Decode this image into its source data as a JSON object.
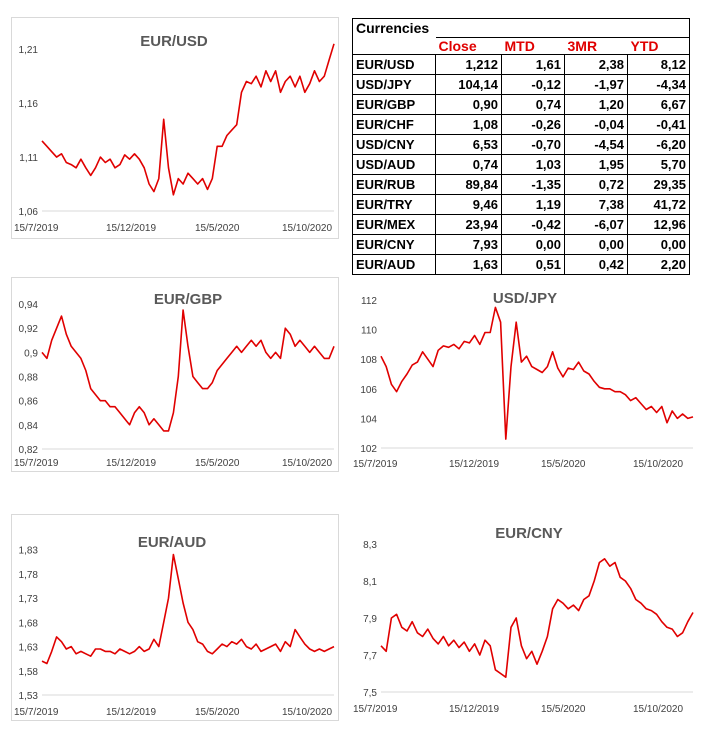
{
  "table": {
    "title": "Currencies",
    "columns": [
      "Close",
      "MTD",
      "3MR",
      "YTD"
    ],
    "rows": [
      {
        "pair": "EUR/USD",
        "close": "1,212",
        "mtd": "1,61",
        "r3m": "2,38",
        "ytd": "8,12"
      },
      {
        "pair": "USD/JPY",
        "close": "104,14",
        "mtd": "-0,12",
        "r3m": "-1,97",
        "ytd": "-4,34"
      },
      {
        "pair": "EUR/GBP",
        "close": "0,90",
        "mtd": "0,74",
        "r3m": "1,20",
        "ytd": "6,67"
      },
      {
        "pair": "EUR/CHF",
        "close": "1,08",
        "mtd": "-0,26",
        "r3m": "-0,04",
        "ytd": "-0,41"
      },
      {
        "pair": "USD/CNY",
        "close": "6,53",
        "mtd": "-0,70",
        "r3m": "-4,54",
        "ytd": "-6,20"
      },
      {
        "pair": "USD/AUD",
        "close": "0,74",
        "mtd": "1,03",
        "r3m": "1,95",
        "ytd": "5,70"
      },
      {
        "pair": "EUR/RUB",
        "close": "89,84",
        "mtd": "-1,35",
        "r3m": "0,72",
        "ytd": "29,35"
      },
      {
        "pair": "EUR/TRY",
        "close": "9,46",
        "mtd": "1,19",
        "r3m": "7,38",
        "ytd": "41,72"
      },
      {
        "pair": "EUR/MEX",
        "close": "23,94",
        "mtd": "-0,42",
        "r3m": "-6,07",
        "ytd": "12,96"
      },
      {
        "pair": "EUR/CNY",
        "close": "7,93",
        "mtd": "0,00",
        "r3m": "0,00",
        "ytd": "0,00"
      },
      {
        "pair": "EUR/AUD",
        "close": "1,63",
        "mtd": "0,51",
        "r3m": "0,42",
        "ytd": "2,20"
      }
    ]
  },
  "colors": {
    "line": "#e00000",
    "axis": "#d9d9d9",
    "text": "#404040"
  },
  "chart_data": [
    {
      "type": "line",
      "id": "eurusd",
      "title": "EUR/USD",
      "xticks": [
        "15/7/2019",
        "15/12/2019",
        "15/5/2020",
        "15/10/2020"
      ],
      "yticks": [
        "1,06",
        "1,11",
        "1,16",
        "1,21"
      ],
      "ylim": [
        1.06,
        1.225
      ],
      "series": [
        {
          "name": "EUR/USD",
          "values": [
            1.125,
            1.12,
            1.115,
            1.11,
            1.113,
            1.105,
            1.103,
            1.1,
            1.108,
            1.1,
            1.093,
            1.1,
            1.11,
            1.105,
            1.108,
            1.1,
            1.103,
            1.112,
            1.108,
            1.113,
            1.108,
            1.1,
            1.085,
            1.078,
            1.09,
            1.145,
            1.1,
            1.075,
            1.09,
            1.085,
            1.095,
            1.09,
            1.085,
            1.09,
            1.08,
            1.09,
            1.12,
            1.12,
            1.13,
            1.135,
            1.14,
            1.17,
            1.18,
            1.178,
            1.185,
            1.175,
            1.19,
            1.18,
            1.19,
            1.17,
            1.18,
            1.185,
            1.175,
            1.185,
            1.17,
            1.178,
            1.19,
            1.18,
            1.185,
            1.2,
            1.215
          ]
        }
      ]
    },
    {
      "type": "line",
      "id": "eurgbp",
      "title": "EUR/GBP",
      "xticks": [
        "15/7/2019",
        "15/12/2019",
        "15/5/2020",
        "15/10/2020"
      ],
      "yticks": [
        "0,82",
        "0,84",
        "0,86",
        "0,88",
        "0,9",
        "0,92",
        "0,94"
      ],
      "ylim": [
        0.82,
        0.945
      ],
      "series": [
        {
          "name": "EUR/GBP",
          "values": [
            0.9,
            0.895,
            0.91,
            0.92,
            0.93,
            0.915,
            0.905,
            0.9,
            0.895,
            0.885,
            0.87,
            0.865,
            0.86,
            0.86,
            0.855,
            0.855,
            0.85,
            0.845,
            0.84,
            0.85,
            0.855,
            0.85,
            0.84,
            0.845,
            0.84,
            0.835,
            0.835,
            0.85,
            0.88,
            0.935,
            0.905,
            0.88,
            0.875,
            0.87,
            0.87,
            0.875,
            0.885,
            0.89,
            0.895,
            0.9,
            0.905,
            0.9,
            0.905,
            0.91,
            0.905,
            0.91,
            0.9,
            0.895,
            0.9,
            0.895,
            0.92,
            0.915,
            0.905,
            0.91,
            0.905,
            0.9,
            0.905,
            0.9,
            0.895,
            0.895,
            0.905
          ]
        }
      ]
    },
    {
      "type": "line",
      "id": "usdjpy",
      "title": "USD/JPY",
      "xticks": [
        "15/7/2019",
        "15/12/2019",
        "15/5/2020",
        "15/10/2020"
      ],
      "yticks": [
        "102",
        "104",
        "106",
        "108",
        "110",
        "112"
      ],
      "ylim": [
        102,
        112.2
      ],
      "series": [
        {
          "name": "USD/JPY",
          "values": [
            108.2,
            107.5,
            106.3,
            105.8,
            106.5,
            107.0,
            107.6,
            107.8,
            108.5,
            108.0,
            107.5,
            108.6,
            108.9,
            108.8,
            109.0,
            108.7,
            109.2,
            109.1,
            109.6,
            109.0,
            109.8,
            109.8,
            111.5,
            110.5,
            102.6,
            107.5,
            110.5,
            107.8,
            108.2,
            107.5,
            107.3,
            107.1,
            107.5,
            108.5,
            107.4,
            106.8,
            107.4,
            107.3,
            107.8,
            107.2,
            107.0,
            106.5,
            106.1,
            106.0,
            106.0,
            105.8,
            105.8,
            105.6,
            105.2,
            105.4,
            105.0,
            104.6,
            104.8,
            104.4,
            104.8,
            103.7,
            104.5,
            104.0,
            104.3,
            104.0,
            104.1
          ]
        }
      ]
    },
    {
      "type": "line",
      "id": "euraud",
      "title": "EUR/AUD",
      "xticks": [
        "15/7/2019",
        "15/12/2019",
        "15/5/2020",
        "15/10/2020"
      ],
      "yticks": [
        "1,53",
        "1,58",
        "1,63",
        "1,68",
        "1,73",
        "1,78",
        "1,83"
      ],
      "ylim": [
        1.53,
        1.85
      ],
      "series": [
        {
          "name": "EUR/AUD",
          "values": [
            1.6,
            1.595,
            1.62,
            1.65,
            1.64,
            1.625,
            1.63,
            1.615,
            1.62,
            1.615,
            1.61,
            1.625,
            1.625,
            1.62,
            1.62,
            1.615,
            1.625,
            1.62,
            1.615,
            1.62,
            1.63,
            1.62,
            1.625,
            1.645,
            1.63,
            1.68,
            1.73,
            1.82,
            1.77,
            1.72,
            1.68,
            1.665,
            1.64,
            1.635,
            1.62,
            1.615,
            1.625,
            1.635,
            1.63,
            1.64,
            1.635,
            1.645,
            1.63,
            1.625,
            1.635,
            1.62,
            1.625,
            1.63,
            1.635,
            1.62,
            1.64,
            1.63,
            1.665,
            1.65,
            1.635,
            1.625,
            1.62,
            1.625,
            1.62,
            1.625,
            1.63
          ]
        }
      ]
    },
    {
      "type": "line",
      "id": "eurcny",
      "title": "EUR/CNY",
      "xticks": [
        "15/7/2019",
        "15/12/2019",
        "15/5/2020",
        "15/10/2020"
      ],
      "yticks": [
        "7,5",
        "7,7",
        "7,9",
        "8,1",
        "8,3"
      ],
      "ylim": [
        7.5,
        8.3
      ],
      "series": [
        {
          "name": "EUR/CNY",
          "values": [
            7.75,
            7.72,
            7.9,
            7.92,
            7.85,
            7.83,
            7.88,
            7.82,
            7.8,
            7.84,
            7.79,
            7.76,
            7.8,
            7.75,
            7.78,
            7.74,
            7.77,
            7.72,
            7.76,
            7.7,
            7.78,
            7.75,
            7.62,
            7.6,
            7.58,
            7.85,
            7.9,
            7.75,
            7.68,
            7.72,
            7.65,
            7.72,
            7.8,
            7.95,
            8.0,
            7.98,
            7.95,
            7.97,
            7.94,
            8.0,
            8.02,
            8.1,
            8.2,
            8.22,
            8.18,
            8.2,
            8.12,
            8.1,
            8.06,
            8.0,
            7.98,
            7.95,
            7.94,
            7.92,
            7.88,
            7.85,
            7.84,
            7.8,
            7.82,
            7.88,
            7.93
          ]
        }
      ]
    }
  ]
}
